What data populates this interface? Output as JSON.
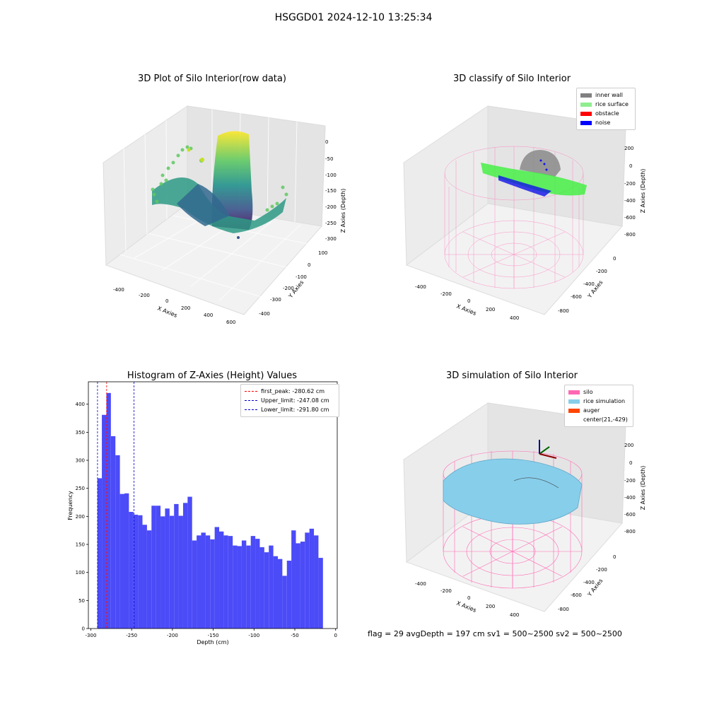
{
  "figure": {
    "title": "HSGGD01 2024-12-10 13:25:34",
    "status_line": "flag = 29  avgDepth = 197 cm  sv1 = 500~2500  sv2 = 500~2500"
  },
  "panels": {
    "raw": {
      "title": "3D Plot of Silo Interior(row data)",
      "x_label": "X Axies",
      "y_label": "Y Axies",
      "z_label": "Z Axies (Depth)",
      "x_ticks": [
        "-400",
        "-200",
        "0",
        "200",
        "400",
        "600"
      ],
      "y_ticks": [
        "100",
        "0",
        "-100",
        "-200",
        "-300",
        "-400"
      ],
      "z_ticks": [
        "0",
        "-50",
        "-100",
        "-150",
        "-200",
        "-250",
        "-300"
      ],
      "colormap": "viridis"
    },
    "classify": {
      "title": "3D classify of Silo Interior",
      "x_label": "X Axies",
      "y_label": "Y Axies",
      "z_label": "Z Axies (Depth)",
      "x_ticks": [
        "-400",
        "-200",
        "0",
        "200",
        "400"
      ],
      "y_ticks": [
        "0",
        "-200",
        "-400",
        "-600",
        "-800"
      ],
      "z_ticks": [
        "200",
        "0",
        "-200",
        "-400",
        "-600",
        "-800"
      ],
      "legend": [
        {
          "label": "inner wall",
          "color": "#808080"
        },
        {
          "label": "rice surface",
          "color": "#90EE90"
        },
        {
          "label": "obstacle",
          "color": "#FF0000"
        },
        {
          "label": "noise",
          "color": "#0000FF"
        }
      ],
      "wire_color": "#FF69B4"
    },
    "simulation": {
      "title": "3D simulation of Silo Interior",
      "x_label": "X Axies",
      "y_label": "Y Axies",
      "z_label": "Z Axies (Depth)",
      "x_ticks": [
        "-400",
        "-200",
        "0",
        "200",
        "400"
      ],
      "y_ticks": [
        "0",
        "-200",
        "-400",
        "-600",
        "-800"
      ],
      "z_ticks": [
        "200",
        "0",
        "-200",
        "-400",
        "-600",
        "-800"
      ],
      "legend": [
        {
          "label": "silo",
          "color": "#FF69B4"
        },
        {
          "label": "rice simulation",
          "color": "#87CEEB"
        },
        {
          "label": "auger",
          "color": "#FF4500"
        },
        {
          "label": "center(21,-429)",
          "color": ""
        }
      ],
      "wire_color": "#FF69B4",
      "surface_color": "#87CEEB"
    }
  },
  "chart_data": [
    {
      "type": "bar",
      "title": "Histogram of Z-Axies (Height) Values",
      "xlabel": "Depth (cm)",
      "ylabel": "Frequency",
      "xlim": [
        -303,
        2
      ],
      "ylim": [
        0,
        440
      ],
      "x_ticks": [
        -300,
        -250,
        -200,
        -150,
        -100,
        -50,
        0
      ],
      "y_ticks": [
        0,
        50,
        100,
        150,
        200,
        250,
        300,
        350,
        400
      ],
      "bar_color": "#4b4bf8",
      "bin_start": -292,
      "bin_width": 5.53,
      "values": [
        268,
        381,
        420,
        343,
        309,
        240,
        241,
        208,
        203,
        202,
        185,
        175,
        219,
        219,
        200,
        214,
        201,
        222,
        201,
        224,
        235,
        157,
        166,
        171,
        166,
        159,
        181,
        173,
        166,
        165,
        148,
        147,
        157,
        148,
        165,
        160,
        145,
        136,
        148,
        129,
        124,
        94,
        121,
        175,
        152,
        155,
        171,
        178,
        166,
        126
      ],
      "lines": [
        {
          "label": "first_peak: -280.62 cm",
          "x": -280.62,
          "color": "#ff0000"
        },
        {
          "label": "Upper_limit: -247.08 cm",
          "x": -247.08,
          "color": "#0000cc"
        },
        {
          "label": "Lower_limit: -291.80 cm",
          "x": -291.8,
          "color": "#0000cc"
        }
      ],
      "legend_position": "upper right"
    }
  ]
}
